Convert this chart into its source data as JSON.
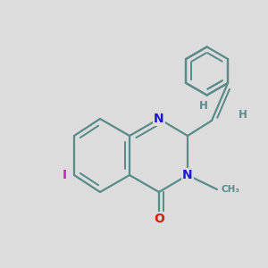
{
  "bg_color": "#dcdcdc",
  "bond_color": "#5a8a8a",
  "bond_width": 1.6,
  "atom_colors": {
    "N": "#1a1acc",
    "O": "#cc2200",
    "I": "#cc22cc",
    "H": "#5a8a8a",
    "C": "#5a8a8a"
  },
  "font_size_atom": 10,
  "font_size_H": 8.5,
  "font_size_I": 10
}
